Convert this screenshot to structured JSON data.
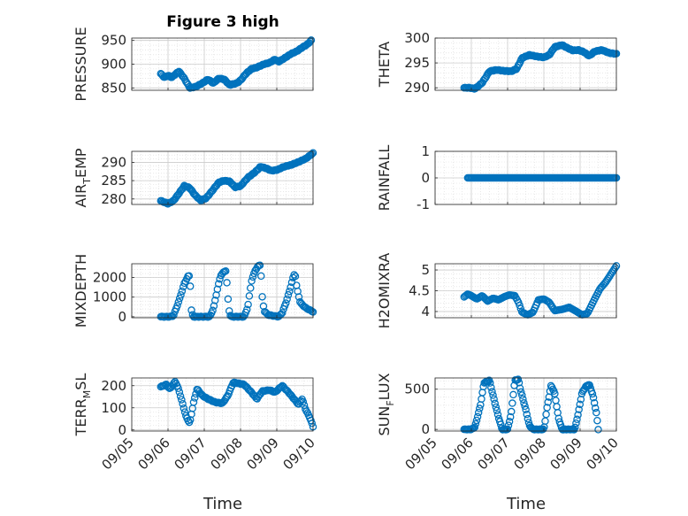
{
  "figure": {
    "title": "Figure 3 high",
    "xlabel": "Time"
  },
  "colors": {
    "marker": "#0072BD",
    "axis": "#262626",
    "grid": "#d9d9d9",
    "background": "#ffffff"
  },
  "chart_data": [
    {
      "type": "scatter",
      "title": "Figure 3 high",
      "ylabel": "PRESSURE",
      "ylim": [
        845,
        955
      ],
      "yticks": [
        850,
        900,
        950
      ],
      "ytick_labels": [
        "850",
        "900",
        "950"
      ],
      "xlim": [
        "09/05",
        "09/10"
      ],
      "xticks": [],
      "grid": "on",
      "anchors": [
        [
          5.8,
          880
        ],
        [
          5.9,
          872
        ],
        [
          6.0,
          876
        ],
        [
          6.1,
          872
        ],
        [
          6.3,
          885
        ],
        [
          6.45,
          870
        ],
        [
          6.6,
          850
        ],
        [
          6.75,
          852
        ],
        [
          6.95,
          860
        ],
        [
          7.1,
          868
        ],
        [
          7.25,
          860
        ],
        [
          7.4,
          870
        ],
        [
          7.55,
          868
        ],
        [
          7.7,
          856
        ],
        [
          7.9,
          860
        ],
        [
          8.0,
          866
        ],
        [
          8.15,
          880
        ],
        [
          8.3,
          890
        ],
        [
          8.45,
          893
        ],
        [
          8.65,
          900
        ],
        [
          8.8,
          903
        ],
        [
          8.95,
          910
        ],
        [
          9.05,
          905
        ],
        [
          9.2,
          912
        ],
        [
          9.4,
          922
        ],
        [
          9.55,
          927
        ],
        [
          9.7,
          935
        ],
        [
          9.85,
          942
        ],
        [
          9.95,
          950
        ]
      ],
      "n_points": 150
    },
    {
      "type": "scatter",
      "ylabel": "THETA",
      "ylim": [
        289.5,
        300
      ],
      "yticks": [
        290,
        295,
        300
      ],
      "ytick_labels": [
        "290",
        "295",
        "300"
      ],
      "xlim": [
        "09/05",
        "09/10"
      ],
      "xticks": [],
      "grid": "on",
      "anchors": [
        [
          5.8,
          290
        ],
        [
          5.95,
          290
        ],
        [
          6.1,
          289.8
        ],
        [
          6.3,
          291
        ],
        [
          6.5,
          293.3
        ],
        [
          6.7,
          293.6
        ],
        [
          6.9,
          293.4
        ],
        [
          7.1,
          293.3
        ],
        [
          7.25,
          293.8
        ],
        [
          7.4,
          296
        ],
        [
          7.6,
          296.6
        ],
        [
          7.8,
          296.3
        ],
        [
          8.0,
          296.1
        ],
        [
          8.15,
          296.6
        ],
        [
          8.3,
          298.2
        ],
        [
          8.5,
          298.6
        ],
        [
          8.65,
          298
        ],
        [
          8.8,
          297.5
        ],
        [
          8.95,
          297.6
        ],
        [
          9.1,
          297.2
        ],
        [
          9.25,
          296.4
        ],
        [
          9.4,
          297.3
        ],
        [
          9.6,
          297.6
        ],
        [
          9.8,
          297
        ],
        [
          10.0,
          296.8
        ]
      ],
      "n_points": 150
    },
    {
      "type": "scatter",
      "ylabel_parts": [
        "AIR",
        "T",
        "EMP"
      ],
      "ylim": [
        278.5,
        293
      ],
      "yticks": [
        280,
        285,
        290
      ],
      "ytick_labels": [
        "280",
        "285",
        "290"
      ],
      "xlim": [
        "09/05",
        "09/10"
      ],
      "xticks": [],
      "grid": "on",
      "anchors": [
        [
          5.8,
          279.5
        ],
        [
          6.0,
          278.7
        ],
        [
          6.15,
          279.5
        ],
        [
          6.3,
          281.5
        ],
        [
          6.45,
          283.6
        ],
        [
          6.6,
          283
        ],
        [
          6.75,
          281
        ],
        [
          6.9,
          279.6
        ],
        [
          7.05,
          280.2
        ],
        [
          7.2,
          282
        ],
        [
          7.4,
          284.5
        ],
        [
          7.55,
          285
        ],
        [
          7.7,
          284.8
        ],
        [
          7.85,
          283.2
        ],
        [
          8.0,
          283.5
        ],
        [
          8.2,
          285.8
        ],
        [
          8.4,
          287.3
        ],
        [
          8.55,
          288.8
        ],
        [
          8.7,
          288.4
        ],
        [
          8.85,
          287.7
        ],
        [
          9.0,
          287.9
        ],
        [
          9.2,
          288.8
        ],
        [
          9.4,
          289.3
        ],
        [
          9.6,
          290.1
        ],
        [
          9.8,
          291
        ],
        [
          10.0,
          292.5
        ]
      ],
      "n_points": 150
    },
    {
      "type": "scatter",
      "ylabel": "RAINFALL",
      "ylim": [
        -1,
        1
      ],
      "yticks": [
        -1,
        0,
        1
      ],
      "ytick_labels": [
        "-1",
        "0",
        "1"
      ],
      "xlim": [
        "09/05",
        "09/10"
      ],
      "xticks": [],
      "grid": "on",
      "anchors": [
        [
          5.9,
          0
        ],
        [
          10.0,
          0
        ]
      ],
      "n_points": 130
    },
    {
      "type": "scatter",
      "ylabel": "MIXDEPTH",
      "ylim": [
        -50,
        2700
      ],
      "yticks": [
        0,
        1000,
        2000
      ],
      "ytick_labels": [
        "0",
        "1000",
        "2000"
      ],
      "xlim": [
        "09/05",
        "09/10"
      ],
      "xticks": [],
      "grid": "on",
      "anchors": [
        [
          5.8,
          0
        ],
        [
          6.05,
          0
        ],
        [
          6.15,
          50
        ],
        [
          6.3,
          800
        ],
        [
          6.45,
          1700
        ],
        [
          6.55,
          2050
        ],
        [
          6.6,
          2100
        ],
        [
          6.65,
          200
        ],
        [
          6.7,
          0
        ],
        [
          7.15,
          0
        ],
        [
          7.25,
          400
        ],
        [
          7.35,
          1300
        ],
        [
          7.45,
          2100
        ],
        [
          7.55,
          2300
        ],
        [
          7.6,
          2350
        ],
        [
          7.65,
          1000
        ],
        [
          7.7,
          100
        ],
        [
          7.75,
          0
        ],
        [
          8.1,
          0
        ],
        [
          8.2,
          500
        ],
        [
          8.3,
          1800
        ],
        [
          8.4,
          2350
        ],
        [
          8.5,
          2600
        ],
        [
          8.55,
          2650
        ],
        [
          8.6,
          1000
        ],
        [
          8.65,
          300
        ],
        [
          8.75,
          100
        ],
        [
          9.05,
          0
        ],
        [
          9.15,
          200
        ],
        [
          9.25,
          700
        ],
        [
          9.35,
          1300
        ],
        [
          9.45,
          2000
        ],
        [
          9.5,
          2250
        ],
        [
          9.55,
          1500
        ],
        [
          9.65,
          700
        ],
        [
          9.8,
          450
        ],
        [
          9.9,
          350
        ],
        [
          10.0,
          250
        ]
      ],
      "n_points": 130
    },
    {
      "type": "scatter",
      "ylabel": "H2OMIXRA",
      "ylim": [
        3.85,
        5.15
      ],
      "yticks": [
        4,
        4.5,
        5
      ],
      "ytick_labels": [
        "4",
        "4.5",
        "5"
      ],
      "xlim": [
        "09/05",
        "09/10"
      ],
      "xticks": [],
      "grid": "on",
      "anchors": [
        [
          5.8,
          4.35
        ],
        [
          5.9,
          4.42
        ],
        [
          6.0,
          4.38
        ],
        [
          6.15,
          4.3
        ],
        [
          6.3,
          4.38
        ],
        [
          6.45,
          4.25
        ],
        [
          6.6,
          4.32
        ],
        [
          6.75,
          4.28
        ],
        [
          6.9,
          4.35
        ],
        [
          7.05,
          4.4
        ],
        [
          7.2,
          4.38
        ],
        [
          7.3,
          4.22
        ],
        [
          7.4,
          3.98
        ],
        [
          7.55,
          3.92
        ],
        [
          7.7,
          3.98
        ],
        [
          7.85,
          4.28
        ],
        [
          8.0,
          4.3
        ],
        [
          8.15,
          4.22
        ],
        [
          8.3,
          4.02
        ],
        [
          8.5,
          4.05
        ],
        [
          8.7,
          4.1
        ],
        [
          8.9,
          4.0
        ],
        [
          9.05,
          3.92
        ],
        [
          9.2,
          3.95
        ],
        [
          9.4,
          4.3
        ],
        [
          9.55,
          4.55
        ],
        [
          9.7,
          4.7
        ],
        [
          9.85,
          4.9
        ],
        [
          10.0,
          5.1
        ]
      ],
      "n_points": 130
    },
    {
      "type": "scatter",
      "ylabel_parts": [
        "TERR",
        "M",
        "SL"
      ],
      "ylim": [
        -5,
        235
      ],
      "yticks": [
        0,
        100,
        200
      ],
      "ytick_labels": [
        "0",
        "100",
        "200"
      ],
      "xlim": [
        "09/05",
        "09/10"
      ],
      "xticks": [
        "09/05",
        "09/06",
        "09/07",
        "09/08",
        "09/09",
        "09/10"
      ],
      "grid": "on",
      "anchors": [
        [
          5.8,
          195
        ],
        [
          5.95,
          205
        ],
        [
          6.05,
          185
        ],
        [
          6.2,
          220
        ],
        [
          6.3,
          180
        ],
        [
          6.4,
          120
        ],
        [
          6.5,
          60
        ],
        [
          6.6,
          30
        ],
        [
          6.7,
          120
        ],
        [
          6.8,
          185
        ],
        [
          6.95,
          155
        ],
        [
          7.1,
          140
        ],
        [
          7.3,
          125
        ],
        [
          7.5,
          120
        ],
        [
          7.65,
          155
        ],
        [
          7.8,
          215
        ],
        [
          7.95,
          210
        ],
        [
          8.1,
          205
        ],
        [
          8.3,
          170
        ],
        [
          8.45,
          140
        ],
        [
          8.6,
          175
        ],
        [
          8.8,
          180
        ],
        [
          8.95,
          170
        ],
        [
          9.15,
          200
        ],
        [
          9.35,
          165
        ],
        [
          9.5,
          135
        ],
        [
          9.6,
          115
        ],
        [
          9.7,
          140
        ],
        [
          9.8,
          90
        ],
        [
          9.9,
          60
        ],
        [
          10.0,
          15
        ]
      ],
      "n_points": 140
    },
    {
      "type": "scatter",
      "ylabel_parts": [
        "SUN",
        "F",
        "LUX"
      ],
      "ylim": [
        -20,
        640
      ],
      "yticks": [
        0,
        500
      ],
      "ytick_labels": [
        "0",
        "500"
      ],
      "xlim": [
        "09/05",
        "09/10"
      ],
      "xticks": [
        "09/05",
        "09/06",
        "09/07",
        "09/08",
        "09/09",
        "09/10"
      ],
      "grid": "on",
      "anchors": [
        [
          5.8,
          0
        ],
        [
          6.0,
          0
        ],
        [
          6.1,
          30
        ],
        [
          6.25,
          300
        ],
        [
          6.35,
          580
        ],
        [
          6.5,
          610
        ],
        [
          6.6,
          420
        ],
        [
          6.75,
          150
        ],
        [
          6.85,
          0
        ],
        [
          7.0,
          0
        ],
        [
          7.1,
          200
        ],
        [
          7.2,
          610
        ],
        [
          7.3,
          620
        ],
        [
          7.35,
          500
        ],
        [
          7.5,
          250
        ],
        [
          7.6,
          50
        ],
        [
          7.7,
          0
        ],
        [
          8.0,
          0
        ],
        [
          8.1,
          300
        ],
        [
          8.2,
          550
        ],
        [
          8.3,
          450
        ],
        [
          8.4,
          150
        ],
        [
          8.5,
          0
        ],
        [
          8.85,
          0
        ],
        [
          8.95,
          200
        ],
        [
          9.05,
          450
        ],
        [
          9.15,
          530
        ],
        [
          9.25,
          560
        ],
        [
          9.35,
          430
        ],
        [
          9.45,
          200
        ],
        [
          9.5,
          0
        ]
      ],
      "n_points": 140
    }
  ]
}
